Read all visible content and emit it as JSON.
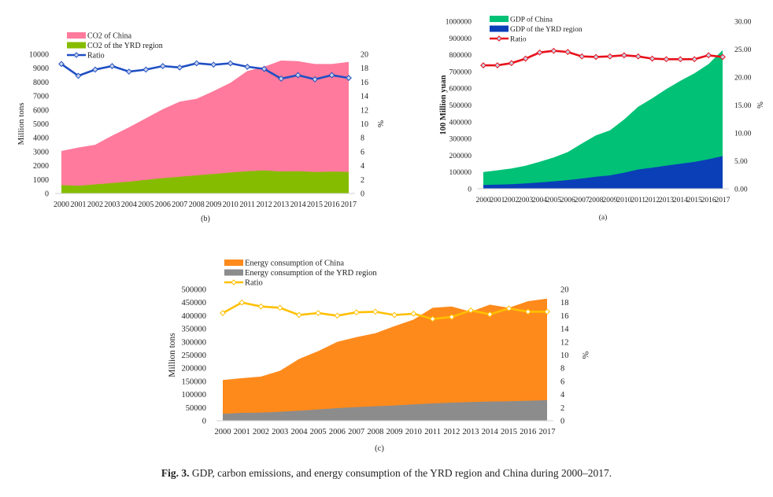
{
  "caption": {
    "label": "Fig. 3.",
    "text": "GDP, carbon emissions, and energy consumption of the YRD region and China during 2000–2017."
  },
  "chart_data": [
    {
      "id": "b",
      "type": "area",
      "panel_label": "(b)",
      "categories": [
        "2000",
        "2001",
        "2002",
        "2003",
        "2004",
        "2005",
        "2006",
        "2007",
        "2008",
        "2009",
        "2010",
        "2011",
        "2012",
        "2013",
        "2014",
        "2015",
        "2016",
        "2017"
      ],
      "ylabel": "Million tons",
      "y2label": "%",
      "ylim": [
        0,
        10000
      ],
      "yticks": [
        "0",
        "1000",
        "2000",
        "3000",
        "4000",
        "5000",
        "6000",
        "7000",
        "8000",
        "9000",
        "10000"
      ],
      "y2lim": [
        0,
        20
      ],
      "y2ticks": [
        "0",
        "2",
        "4",
        "6",
        "8",
        "10",
        "12",
        "14",
        "16",
        "18",
        "20"
      ],
      "legend_placement": "top-left",
      "series": [
        {
          "name": "CO2 of China",
          "kind": "area",
          "color": "#ff7a9c",
          "values": [
            3050,
            3300,
            3500,
            4150,
            4750,
            5400,
            6050,
            6600,
            6800,
            7350,
            7950,
            8800,
            9100,
            9550,
            9500,
            9300,
            9300,
            9450
          ]
        },
        {
          "name": "CO2 of the YRD region",
          "kind": "area",
          "color": "#86bc00",
          "values": [
            600,
            550,
            650,
            750,
            850,
            980,
            1100,
            1200,
            1300,
            1400,
            1500,
            1600,
            1650,
            1580,
            1600,
            1540,
            1570,
            1550
          ]
        },
        {
          "name": "Ratio",
          "kind": "line",
          "axis": "right",
          "color": "#1f4fc4",
          "values": [
            18.6,
            16.9,
            17.8,
            18.3,
            17.5,
            17.8,
            18.3,
            18.1,
            18.7,
            18.5,
            18.7,
            18.2,
            17.9,
            16.5,
            17.0,
            16.4,
            17.0,
            16.6
          ]
        }
      ]
    },
    {
      "id": "a",
      "type": "area",
      "panel_label": "(a)",
      "categories": [
        "2000",
        "2001",
        "2002",
        "2003",
        "2004",
        "2005",
        "2006",
        "2007",
        "2008",
        "2009",
        "2010",
        "2011",
        "2012",
        "2013",
        "2014",
        "2015",
        "2016",
        "2017"
      ],
      "ylabel": "100 Million yuan",
      "y2label": "%",
      "ylim": [
        0,
        1000000
      ],
      "yticks": [
        "0",
        "100000",
        "200000",
        "300000",
        "400000",
        "500000",
        "600000",
        "700000",
        "800000",
        "900000",
        "1000000"
      ],
      "y2lim": [
        0,
        30
      ],
      "y2ticks": [
        "0.00",
        "5.00",
        "10.00",
        "15.00",
        "20.00",
        "25.00",
        "30.00"
      ],
      "legend_placement": "top-left",
      "series": [
        {
          "name": "GDP of China",
          "kind": "area",
          "color": "#00c176",
          "values": [
            100000,
            110000,
            121000,
            137000,
            161000,
            187000,
            219000,
            270000,
            319000,
            349000,
            413000,
            489000,
            540000,
            595000,
            644000,
            689000,
            744000,
            827000
          ]
        },
        {
          "name": "GDP of the YRD region",
          "kind": "area",
          "color": "#0a3fb8",
          "values": [
            22000,
            24500,
            27000,
            31500,
            37500,
            44000,
            51500,
            61000,
            72000,
            80000,
            96000,
            115000,
            126000,
            138000,
            149000,
            160000,
            176000,
            195000
          ]
        },
        {
          "name": "Ratio",
          "kind": "line",
          "axis": "right",
          "color": "#e8101a",
          "values": [
            22.1,
            22.1,
            22.5,
            23.3,
            24.4,
            24.7,
            24.5,
            23.7,
            23.6,
            23.7,
            23.9,
            23.7,
            23.3,
            23.2,
            23.2,
            23.2,
            23.9,
            23.6
          ]
        }
      ]
    },
    {
      "id": "c",
      "type": "area",
      "panel_label": "(c)",
      "categories": [
        "2000",
        "2001",
        "2002",
        "2003",
        "2004",
        "2005",
        "2006",
        "2007",
        "2008",
        "2009",
        "2010",
        "2011",
        "2012",
        "2013",
        "2014",
        "2015",
        "2016",
        "2017"
      ],
      "ylabel": "Million tons",
      "y2label": "%",
      "ylim": [
        0,
        500000
      ],
      "yticks": [
        "0",
        "50000",
        "100000",
        "150000",
        "200000",
        "250000",
        "300000",
        "350000",
        "400000",
        "450000",
        "500000"
      ],
      "y2lim": [
        0,
        20
      ],
      "y2ticks": [
        "0",
        "2",
        "4",
        "6",
        "8",
        "10",
        "12",
        "14",
        "16",
        "18",
        "20"
      ],
      "legend_placement": "top-left",
      "series": [
        {
          "name": "Energy consumption of China",
          "kind": "area",
          "color": "#ff8a1c",
          "values": [
            155000,
            162000,
            168000,
            190000,
            235000,
            265000,
            300000,
            318000,
            333000,
            360000,
            385000,
            430000,
            435000,
            415000,
            442000,
            430000,
            455000,
            465000
          ]
        },
        {
          "name": "Energy consumption of the YRD region",
          "kind": "area",
          "color": "#8c8c8c",
          "values": [
            26000,
            30000,
            31000,
            34000,
            38000,
            43000,
            48000,
            52000,
            55000,
            58000,
            62000,
            66000,
            69000,
            71000,
            73000,
            74000,
            76000,
            78000
          ]
        },
        {
          "name": "Ratio",
          "kind": "line",
          "axis": "right",
          "color": "#ffc000",
          "values": [
            16.4,
            18.0,
            17.4,
            17.2,
            16.1,
            16.4,
            16.0,
            16.5,
            16.6,
            16.1,
            16.3,
            15.5,
            15.8,
            16.8,
            16.2,
            17.1,
            16.6,
            16.6
          ]
        }
      ]
    }
  ]
}
